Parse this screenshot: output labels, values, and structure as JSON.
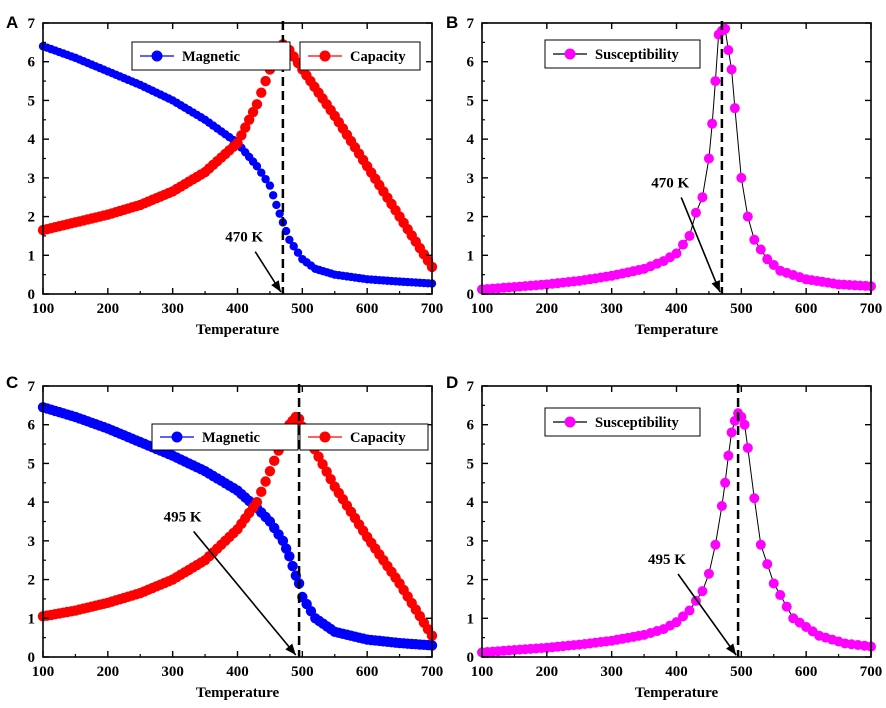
{
  "chart_data": [
    {
      "panel": "A",
      "type": "scatter",
      "xlabel": "Temperature",
      "ylabel": "",
      "xlim": [
        100,
        700
      ],
      "ylim": [
        0,
        7
      ],
      "xticks": [
        100,
        200,
        300,
        400,
        500,
        600,
        700
      ],
      "yticks": [
        0,
        1,
        2,
        3,
        4,
        5,
        6,
        7
      ],
      "vline": 470,
      "annotation": {
        "text": "470 K",
        "x": 415,
        "y": 1.3,
        "arrow_to": [
          470,
          0
        ]
      },
      "series": [
        {
          "name": "Magnetic",
          "color": "#0000ff",
          "marker_size": 4.2,
          "x": [
            100,
            150,
            200,
            250,
            300,
            350,
            400,
            430,
            450,
            460,
            470,
            480,
            500,
            520,
            550,
            600,
            650,
            700
          ],
          "y": [
            6.4,
            6.1,
            5.75,
            5.4,
            5.0,
            4.5,
            3.9,
            3.3,
            2.8,
            2.3,
            1.85,
            1.4,
            0.9,
            0.65,
            0.5,
            0.38,
            0.32,
            0.27
          ]
        },
        {
          "name": "Capacity",
          "color": "#ff0000",
          "marker_size": 5.2,
          "x": [
            100,
            150,
            200,
            250,
            300,
            350,
            400,
            430,
            450,
            460,
            470,
            480,
            500,
            550,
            600,
            650,
            700
          ],
          "y": [
            1.65,
            1.85,
            2.05,
            2.3,
            2.65,
            3.15,
            3.9,
            4.9,
            5.8,
            6.3,
            6.45,
            6.3,
            5.8,
            4.6,
            3.3,
            2.0,
            0.7
          ]
        }
      ]
    },
    {
      "panel": "B",
      "type": "scatter",
      "xlabel": "Temperature",
      "ylabel": "",
      "xlim": [
        100,
        700
      ],
      "ylim": [
        0,
        7
      ],
      "xticks": [
        100,
        200,
        300,
        400,
        500,
        600,
        700
      ],
      "yticks": [
        0,
        1,
        2,
        3,
        4,
        5,
        6,
        7
      ],
      "vline": 470,
      "annotation": {
        "text": "470 K",
        "x": 395,
        "y": 2.7,
        "arrow_to": [
          470,
          0
        ]
      },
      "series": [
        {
          "name": "Susceptibility",
          "color": "#ff00ff",
          "marker_size": 5,
          "connect": true,
          "x": [
            100,
            150,
            200,
            250,
            300,
            350,
            380,
            400,
            420,
            430,
            440,
            450,
            455,
            460,
            465,
            470,
            475,
            480,
            485,
            490,
            500,
            510,
            520,
            540,
            560,
            600,
            650,
            700
          ],
          "y": [
            0.12,
            0.18,
            0.25,
            0.34,
            0.47,
            0.65,
            0.85,
            1.05,
            1.5,
            2.1,
            2.5,
            3.5,
            4.4,
            5.5,
            6.7,
            6.8,
            6.85,
            6.3,
            5.8,
            4.8,
            3.0,
            2.0,
            1.4,
            0.9,
            0.6,
            0.38,
            0.25,
            0.2
          ]
        }
      ]
    },
    {
      "panel": "C",
      "type": "scatter",
      "xlabel": "Temperature",
      "ylabel": "",
      "xlim": [
        100,
        700
      ],
      "ylim": [
        0,
        7
      ],
      "xticks": [
        100,
        200,
        300,
        400,
        500,
        600,
        700
      ],
      "yticks": [
        0,
        1,
        2,
        3,
        4,
        5,
        6,
        7
      ],
      "vline": 495,
      "annotation": {
        "text": "495 K",
        "x": 320,
        "y": 3.45,
        "arrow_to": [
          493,
          0
        ]
      },
      "series": [
        {
          "name": "Magnetic",
          "color": "#0000ff",
          "marker_size": 5.2,
          "x": [
            100,
            150,
            200,
            250,
            300,
            350,
            400,
            430,
            450,
            470,
            480,
            490,
            495,
            500,
            520,
            550,
            600,
            650,
            700
          ],
          "y": [
            6.45,
            6.2,
            5.9,
            5.55,
            5.2,
            4.8,
            4.3,
            3.85,
            3.5,
            3.0,
            2.6,
            2.1,
            1.9,
            1.55,
            1.0,
            0.65,
            0.45,
            0.36,
            0.3
          ]
        },
        {
          "name": "Capacity",
          "color": "#ff0000",
          "marker_size": 5.2,
          "x": [
            100,
            150,
            200,
            250,
            300,
            350,
            400,
            430,
            450,
            470,
            480,
            490,
            495,
            500,
            550,
            600,
            650,
            700
          ],
          "y": [
            1.05,
            1.2,
            1.4,
            1.65,
            2.0,
            2.5,
            3.3,
            4.0,
            4.8,
            5.6,
            6.0,
            6.2,
            6.15,
            5.95,
            4.4,
            3.1,
            1.9,
            0.55
          ]
        }
      ]
    },
    {
      "panel": "D",
      "type": "scatter",
      "xlabel": "Temperature",
      "ylabel": "",
      "xlim": [
        100,
        700
      ],
      "ylim": [
        0,
        7
      ],
      "xticks": [
        100,
        200,
        300,
        400,
        500,
        600,
        700
      ],
      "yticks": [
        0,
        1,
        2,
        3,
        4,
        5,
        6,
        7
      ],
      "vline": 495,
      "annotation": {
        "text": "495 K",
        "x": 390,
        "y": 2.35,
        "arrow_to": [
          495,
          0
        ]
      },
      "series": [
        {
          "name": "Susceptibility",
          "color": "#ff00ff",
          "marker_size": 5,
          "connect": true,
          "x": [
            100,
            150,
            200,
            250,
            300,
            350,
            380,
            400,
            420,
            440,
            450,
            460,
            470,
            475,
            480,
            485,
            490,
            495,
            500,
            505,
            510,
            520,
            530,
            550,
            580,
            620,
            660,
            700
          ],
          "y": [
            0.12,
            0.18,
            0.24,
            0.32,
            0.42,
            0.57,
            0.72,
            0.9,
            1.2,
            1.7,
            2.15,
            2.9,
            3.9,
            4.5,
            5.2,
            5.8,
            6.1,
            6.3,
            6.2,
            6.0,
            5.4,
            4.1,
            2.9,
            1.9,
            1.0,
            0.55,
            0.35,
            0.27
          ]
        }
      ]
    }
  ]
}
